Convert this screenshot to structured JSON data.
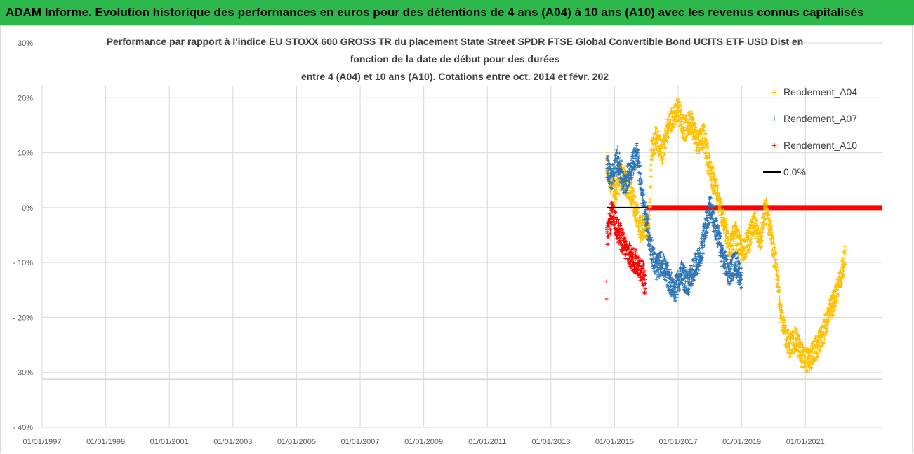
{
  "banner": {
    "text": "ADAM Informe. Evolution historique des performances en euros pour des détentions de 4 ans (A04) à 10 ans (A10) avec les revenus connus capitalisés",
    "color": "#2db84b"
  },
  "chart_data": {
    "type": "scatter",
    "title": [
      "Performance par rapport à l'indice EU STOXX 600 GROSS TR  du placement State Street SPDR FTSE Global Convertible Bond UCITS ETF USD Dist en",
      "fonction de la date de début pour des durées",
      "entre 4 (A04) et 10 ans (A10). Cotations entre oct. 2014 et févr. 202"
    ],
    "xlabel": "",
    "ylabel": "",
    "x_tick_labels": [
      "01/01/1997",
      "01/01/1999",
      "01/01/2001",
      "01/01/2003",
      "01/01/2005",
      "01/01/2007",
      "01/01/2009",
      "01/01/2011",
      "01/01/2013",
      "01/01/2015",
      "01/01/2017",
      "01/01/2019",
      "01/01/2021"
    ],
    "x_ticks_year": [
      1997,
      1999,
      2001,
      2003,
      2005,
      2007,
      2009,
      2011,
      2013,
      2015,
      2017,
      2019,
      2021
    ],
    "xlim": [
      1997,
      2023.4
    ],
    "y_tick_labels": [
      "30%",
      "20%",
      "10%",
      "0%",
      "- 10%",
      "- 20%",
      "- 30%",
      "- 40%"
    ],
    "y_ticks": [
      30,
      20,
      10,
      0,
      -10,
      -20,
      -30,
      -40
    ],
    "ylim": [
      -40,
      30
    ],
    "legend_position": "top-right",
    "series": [
      {
        "name": "Rendement_A04",
        "color": "#ffc000",
        "marker": "+",
        "anchors": [
          [
            2014.75,
            8
          ],
          [
            2015.0,
            2
          ],
          [
            2015.2,
            6
          ],
          [
            2015.5,
            3
          ],
          [
            2015.7,
            -1
          ],
          [
            2015.8,
            -4
          ],
          [
            2016.1,
            -3
          ],
          [
            2016.15,
            10
          ],
          [
            2016.3,
            13
          ],
          [
            2016.5,
            10
          ],
          [
            2016.7,
            15
          ],
          [
            2016.9,
            17
          ],
          [
            2017.0,
            18
          ],
          [
            2017.2,
            14
          ],
          [
            2017.4,
            16
          ],
          [
            2017.6,
            12
          ],
          [
            2017.8,
            13
          ],
          [
            2018.0,
            7
          ],
          [
            2018.2,
            3
          ],
          [
            2018.4,
            -2
          ],
          [
            2018.6,
            -7
          ],
          [
            2018.8,
            -5
          ],
          [
            2019.0,
            -8
          ],
          [
            2019.2,
            -6
          ],
          [
            2019.4,
            -3
          ],
          [
            2019.6,
            -6
          ],
          [
            2019.75,
            0
          ],
          [
            2019.9,
            -4
          ],
          [
            2020.1,
            -12
          ],
          [
            2020.3,
            -22
          ],
          [
            2020.5,
            -25
          ],
          [
            2020.7,
            -24
          ],
          [
            2020.9,
            -27
          ],
          [
            2021.1,
            -28
          ],
          [
            2021.3,
            -26
          ],
          [
            2021.5,
            -24
          ],
          [
            2021.7,
            -20
          ],
          [
            2021.9,
            -17
          ],
          [
            2022.1,
            -13
          ],
          [
            2022.25,
            -9
          ]
        ]
      },
      {
        "name": "Rendement_A07",
        "color": "#2e75b6",
        "marker": "+",
        "anchors": [
          [
            2014.75,
            8
          ],
          [
            2014.9,
            5
          ],
          [
            2015.1,
            9
          ],
          [
            2015.3,
            4
          ],
          [
            2015.5,
            7
          ],
          [
            2015.7,
            10
          ],
          [
            2015.9,
            1
          ],
          [
            2016.1,
            -6
          ],
          [
            2016.3,
            -11
          ],
          [
            2016.5,
            -10
          ],
          [
            2016.7,
            -13
          ],
          [
            2016.9,
            -15
          ],
          [
            2017.1,
            -12
          ],
          [
            2017.3,
            -14
          ],
          [
            2017.5,
            -11
          ],
          [
            2017.7,
            -9
          ],
          [
            2017.85,
            -4
          ],
          [
            2018.0,
            0
          ],
          [
            2018.2,
            -4
          ],
          [
            2018.4,
            -9
          ],
          [
            2018.6,
            -12
          ],
          [
            2018.8,
            -10
          ],
          [
            2019.0,
            -13
          ]
        ]
      },
      {
        "name": "Rendement_A10",
        "color": "#ff0000",
        "marker": "+",
        "anchors": [
          [
            2014.75,
            -6
          ],
          [
            2014.85,
            -3
          ],
          [
            2014.9,
            -1
          ],
          [
            2015.1,
            -4
          ],
          [
            2015.3,
            -7
          ],
          [
            2015.5,
            -9
          ],
          [
            2015.7,
            -10
          ],
          [
            2015.9,
            -12
          ],
          [
            2015.97,
            -15
          ]
        ]
      },
      {
        "name": "0,0%",
        "color": "#000000",
        "marker": "line",
        "anchors": [
          [
            2014.75,
            0
          ],
          [
            2016.0,
            0
          ]
        ]
      }
    ],
    "zero_band": {
      "color": "#ff0000",
      "x_from": 2016.0,
      "x_to": 2023.4,
      "y": 0
    }
  }
}
